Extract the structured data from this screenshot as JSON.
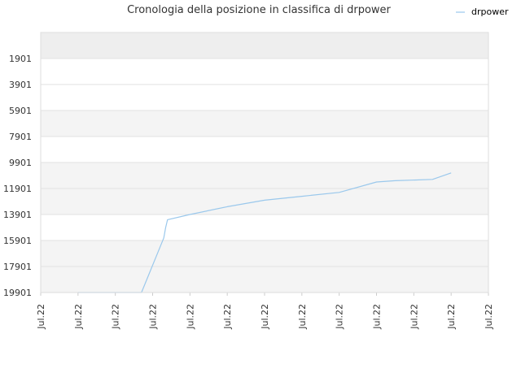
{
  "chart_data": {
    "type": "line",
    "title": "Cronologia della posizione in classifica di drpower",
    "y_reversed": true,
    "ylim": [
      -99,
      19901
    ],
    "y_ticks": [
      "1901",
      "3901",
      "5901",
      "7901",
      "9901",
      "11901",
      "13901",
      "15901",
      "17901",
      "19901"
    ],
    "x_ticks": [
      "Jul.22",
      "Jul.22",
      "Jul.22",
      "Jul.22",
      "Jul.22",
      "Jul.22",
      "Jul.22",
      "Jul.22",
      "Jul.22",
      "Jul.22",
      "Jul.22",
      "Jul.22",
      "Jul.22"
    ],
    "x_range": [
      0,
      12
    ],
    "grid": true,
    "legend_position": "top-right",
    "line_color": "#9ac8ec",
    "band_color": "#eeeeee",
    "series": [
      {
        "name": "drpower",
        "points": [
          [
            1,
            19901
          ],
          [
            1.6,
            19901
          ],
          [
            2.4,
            19901
          ],
          [
            2.7,
            19901
          ],
          [
            3.3,
            15701
          ],
          [
            3.35,
            14901
          ],
          [
            3.4,
            14301
          ],
          [
            4,
            13901
          ],
          [
            5,
            13301
          ],
          [
            6,
            12801
          ],
          [
            7,
            12501
          ],
          [
            8,
            12201
          ],
          [
            9,
            11401
          ],
          [
            9.5,
            11301
          ],
          [
            10.5,
            11201
          ],
          [
            11,
            10701
          ]
        ]
      }
    ]
  }
}
